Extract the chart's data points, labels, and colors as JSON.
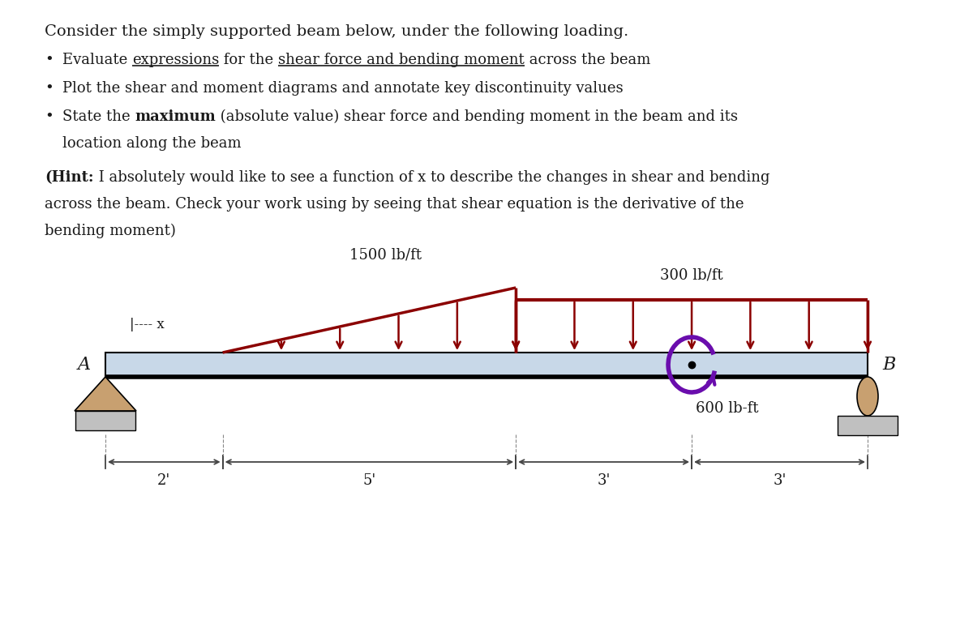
{
  "title": "Consider the simply supported beam below, under the following loading.",
  "b1_pre": "Evaluate ",
  "b1_ul1": "expressions",
  "b1_mid": " for the ",
  "b1_ul2": "shear force and bending moment",
  "b1_post": " across the beam",
  "b2": "Plot the shear and moment diagrams and annotate key discontinuity values",
  "b3_pre": "State the ",
  "b3_bold": "maximum",
  "b3_post": " (absolute value) shear force and bending moment in the beam and its",
  "b3_cont": "location along the beam",
  "hint_bold": "(Hint:",
  "hint_text": " I absolutely would like to see a function of x to describe the changes in shear and bending",
  "hint_line2": "across the beam. Check your work using by seeing that shear equation is the derivative of the",
  "hint_line3": "bending moment)",
  "load1_label": "1500 lb/ft",
  "load2_label": "300 lb/ft",
  "moment_label": "600 lb-ft",
  "label_A": "A",
  "label_B": "B",
  "dim1": "2'",
  "dim2": "5'",
  "dim3": "3'",
  "dim4": "3'",
  "beam_color": "#c8d8e8",
  "load_color": "#8b0000",
  "moment_color": "#6a0dad",
  "pin_color": "#c8a070",
  "base_color": "#c0c0c0",
  "bg_color": "#ffffff",
  "text_color": "#1a1a1a"
}
